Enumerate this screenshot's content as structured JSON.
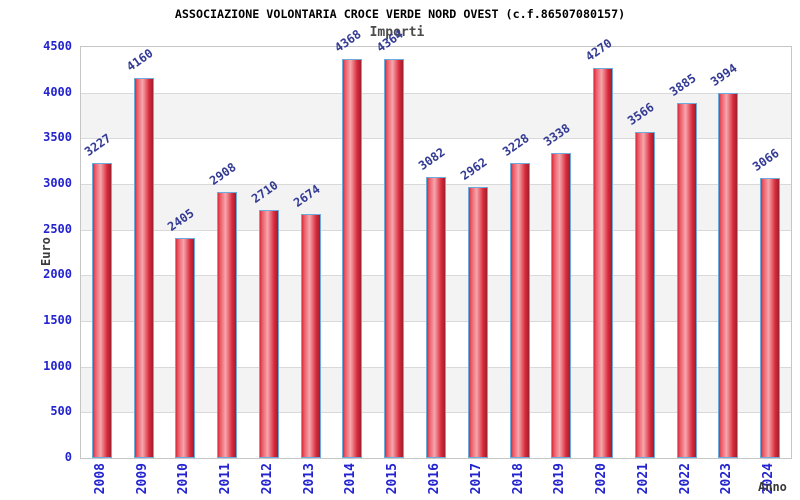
{
  "chart_data": {
    "type": "bar",
    "title": "ASSOCIAZIONE VOLONTARIA CROCE VERDE NORD OVEST (c.f.86507080157)",
    "subtitle": "Importi",
    "xlabel": "Anno",
    "ylabel": "Euro",
    "categories": [
      "2008",
      "2009",
      "2010",
      "2011",
      "2012",
      "2013",
      "2014",
      "2015",
      "2016",
      "2017",
      "2018",
      "2019",
      "2020",
      "2021",
      "2022",
      "2023",
      "2024"
    ],
    "values": [
      3227,
      4160,
      2405,
      2908,
      2710,
      2674,
      4368,
      4364,
      3082,
      2962,
      3228,
      3338,
      4270,
      3566,
      3885,
      3994,
      3066
    ],
    "ylim": [
      0,
      4500
    ],
    "ytick_step": 500,
    "yticks": [
      0,
      500,
      1000,
      1500,
      2000,
      2500,
      3000,
      3500,
      4000,
      4500
    ],
    "grid": true,
    "legend": "none",
    "band_fill": "alternating horizontal bands",
    "colors": {
      "title": "#000000",
      "subtitle": "#4a4a4a",
      "axis_tick_label": "#2323cf",
      "value_label": "#333a94",
      "axis_title": "#3a3a3a",
      "plot_border": "#c6c6c6",
      "grid_line": "#d9d9d9",
      "band_gray": "#f3f3f3",
      "band_white": "#ffffff",
      "bar_border": "#6cabdc",
      "bar_red_dark": "#9e1f2c",
      "bar_red_main": "#d92c3c",
      "bar_red_light": "#f7a6ad"
    }
  }
}
